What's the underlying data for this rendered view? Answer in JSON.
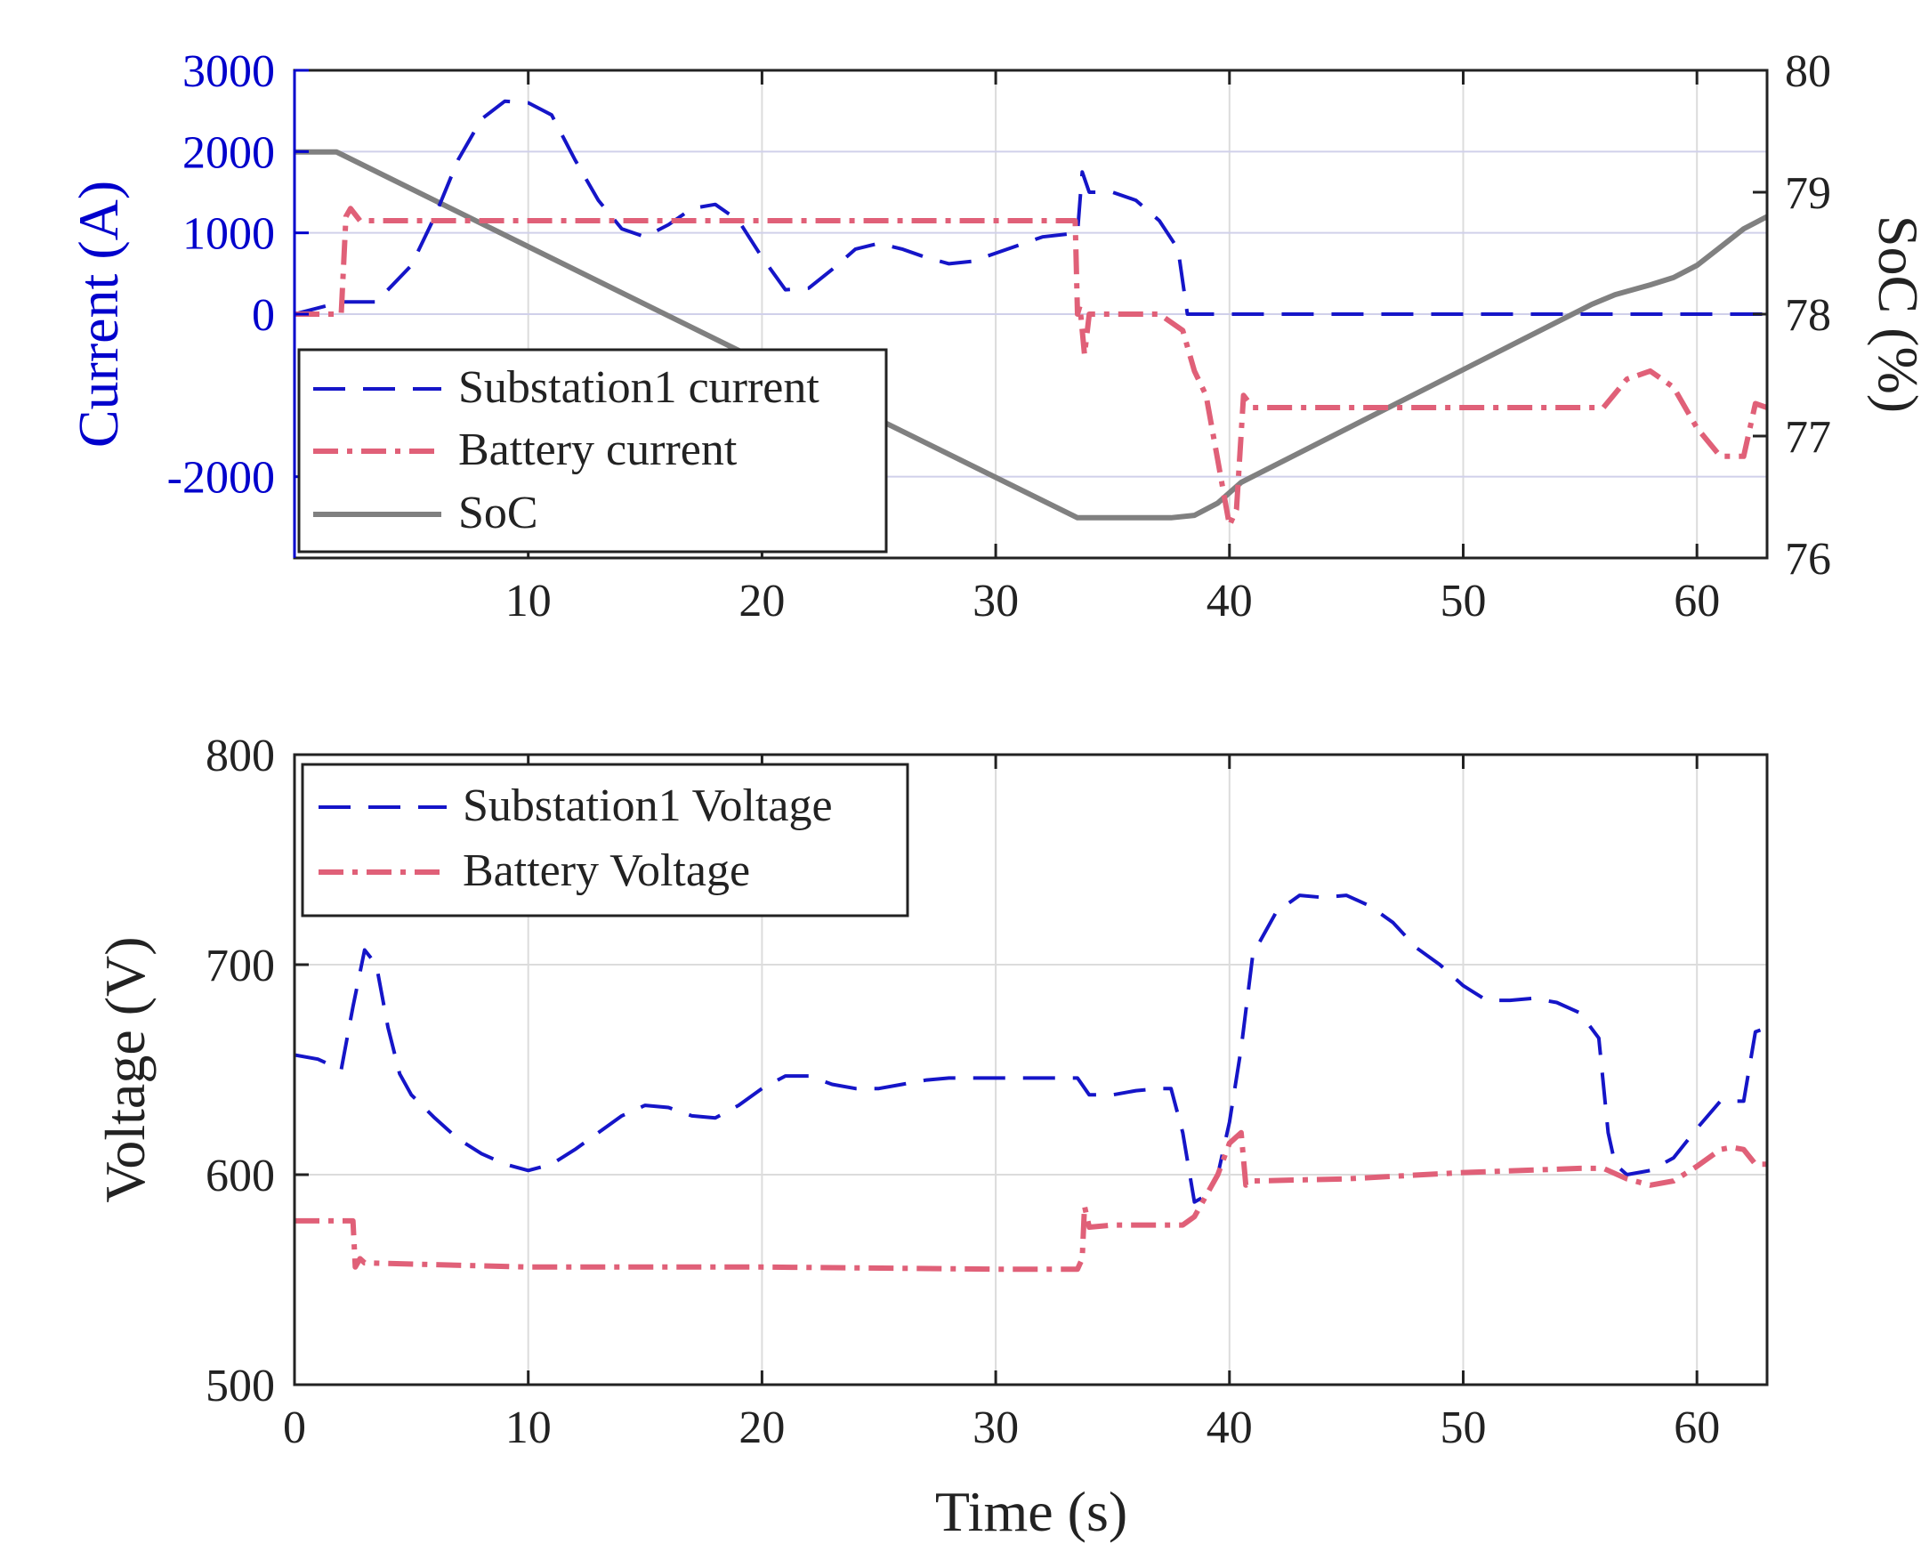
{
  "chart_data": [
    {
      "type": "line",
      "panel": "top",
      "title": "",
      "xlabel": "",
      "ylabel": "Current (A)",
      "ylabel_right": "SoC (%)",
      "xlim": [
        0,
        63
      ],
      "ylim": [
        -3000,
        3000
      ],
      "ylim_right": [
        76,
        80
      ],
      "xticks": [
        "10",
        "20",
        "30",
        "40",
        "50",
        "60"
      ],
      "xtick_values": [
        10,
        20,
        30,
        40,
        50,
        60
      ],
      "yticks": [
        "3000",
        "2000",
        "1000",
        "0",
        "-2000"
      ],
      "ytick_values": [
        3000,
        2000,
        1000,
        0,
        -2000
      ],
      "yticks_right": [
        "80",
        "79",
        "78",
        "77",
        "76"
      ],
      "ytick_values_right": [
        80,
        79,
        78,
        77,
        76
      ],
      "grid": true,
      "legend_position": "bottom-left",
      "colors": {
        "axis_left": "#0000cc",
        "axis_right": "#222222",
        "grid": "#d0d0ea",
        "frame": "#222222"
      },
      "series": [
        {
          "name": "Substation1 current",
          "axis": "left",
          "color": "#1515c8",
          "style": "dashed",
          "x": [
            0,
            2,
            3.5,
            5,
            6,
            7,
            8,
            9,
            10,
            11,
            12,
            13,
            14,
            15,
            16,
            17,
            18,
            19,
            20,
            21,
            22,
            23,
            24,
            25,
            26,
            27,
            28,
            29,
            30,
            31,
            32,
            33.5,
            33.7,
            34,
            35,
            36,
            37,
            37.8,
            38.2,
            40,
            50,
            63
          ],
          "y": [
            0,
            150,
            150,
            600,
            1200,
            1900,
            2400,
            2620,
            2600,
            2450,
            1900,
            1400,
            1050,
            950,
            1100,
            1300,
            1350,
            1150,
            700,
            300,
            320,
            550,
            800,
            870,
            800,
            700,
            620,
            650,
            750,
            850,
            950,
            1000,
            1750,
            1500,
            1500,
            1400,
            1150,
            800,
            0,
            0,
            0,
            0
          ]
        },
        {
          "name": "Battery current",
          "axis": "left",
          "color": "#e06078",
          "style": "dashdot",
          "x": [
            0,
            2,
            2.2,
            2.4,
            2.8,
            10,
            20,
            30,
            33.4,
            33.5,
            33.6,
            33.8,
            34,
            35,
            37,
            38,
            38.5,
            39,
            39.5,
            40,
            40.3,
            40.6,
            41,
            55,
            56,
            57,
            58,
            59,
            60,
            61,
            62,
            62.5,
            63
          ],
          "y": [
            0,
            0,
            1200,
            1300,
            1150,
            1150,
            1150,
            1150,
            1150,
            0,
            100,
            -500,
            0,
            0,
            0,
            -200,
            -700,
            -1000,
            -1800,
            -2600,
            -2400,
            -1000,
            -1150,
            -1150,
            -1150,
            -800,
            -700,
            -900,
            -1400,
            -1750,
            -1750,
            -1100,
            -1150
          ]
        },
        {
          "name": "SoC",
          "axis": "right",
          "color": "#808080",
          "style": "solid",
          "x": [
            0,
            1.8,
            33.5,
            37.5,
            38.5,
            39.5,
            40.5,
            55.5,
            56.5,
            58,
            59,
            60,
            61,
            62,
            63
          ],
          "y": [
            79.33,
            79.33,
            76.33,
            76.33,
            76.35,
            76.45,
            76.62,
            78.08,
            78.16,
            78.24,
            78.3,
            78.4,
            78.55,
            78.7,
            78.8
          ]
        }
      ]
    },
    {
      "type": "line",
      "panel": "bottom",
      "title": "",
      "xlabel": "Time (s)",
      "ylabel": "Voltage (V)",
      "xlim": [
        0,
        63
      ],
      "ylim": [
        500,
        800
      ],
      "xticks": [
        "0",
        "10",
        "20",
        "30",
        "40",
        "50",
        "60"
      ],
      "xtick_values": [
        0,
        10,
        20,
        30,
        40,
        50,
        60
      ],
      "yticks": [
        "800",
        "700",
        "600",
        "500"
      ],
      "ytick_values": [
        800,
        700,
        600,
        500
      ],
      "grid": true,
      "legend_position": "top-left",
      "colors": {
        "axis": "#222222",
        "grid": "#dcdcdc",
        "frame": "#222222"
      },
      "series": [
        {
          "name": "Substation1 Voltage",
          "color": "#1515c8",
          "style": "dashed",
          "x": [
            0,
            1,
            2,
            2.5,
            3,
            3.5,
            4,
            4.5,
            5,
            6,
            7,
            8,
            9,
            10,
            11,
            12,
            13,
            14,
            15,
            16,
            17,
            18,
            19,
            20,
            21,
            22,
            23,
            24,
            25,
            26,
            27,
            28,
            29,
            30,
            31,
            32,
            33.5,
            34,
            35,
            36,
            37,
            37.5,
            38,
            38.5,
            39,
            39.5,
            40,
            40.5,
            41,
            42,
            43,
            44,
            45,
            46,
            47,
            48,
            49,
            50,
            51,
            52,
            53,
            54,
            55,
            55.8,
            56.2,
            56.5,
            57,
            58,
            59,
            60,
            61,
            62,
            62.5,
            63
          ],
          "y": [
            657,
            655,
            650,
            680,
            707,
            700,
            670,
            648,
            638,
            627,
            617,
            610,
            605,
            602,
            605,
            612,
            620,
            628,
            633,
            632,
            628,
            627,
            633,
            641,
            647,
            647,
            643,
            641,
            641,
            643,
            645,
            646,
            646,
            646,
            646,
            646,
            646,
            638,
            638,
            640,
            641,
            641,
            620,
            587,
            590,
            600,
            625,
            660,
            705,
            725,
            733,
            732,
            733,
            728,
            720,
            708,
            700,
            690,
            683,
            683,
            684,
            682,
            677,
            665,
            620,
            605,
            600,
            602,
            608,
            622,
            635,
            635,
            668,
            670
          ]
        },
        {
          "name": "Battery Voltage",
          "color": "#e06078",
          "style": "dashdot",
          "x": [
            0,
            2.5,
            2.6,
            2.8,
            3,
            10,
            20,
            30,
            33.5,
            33.7,
            33.8,
            34,
            35,
            37,
            38,
            38.5,
            39,
            39.5,
            40,
            40.3,
            40.5,
            40.7,
            41,
            45,
            50,
            55,
            56,
            57,
            58,
            59,
            60,
            61,
            61.5,
            62,
            62.5,
            63
          ],
          "y": [
            578,
            578,
            556,
            560,
            558,
            556,
            556,
            555,
            555,
            560,
            585,
            575,
            576,
            576,
            576,
            580,
            590,
            600,
            615,
            618,
            620,
            595,
            597,
            598,
            601,
            603,
            603,
            598,
            595,
            597,
            604,
            612,
            613,
            612,
            605,
            605
          ]
        }
      ]
    }
  ]
}
